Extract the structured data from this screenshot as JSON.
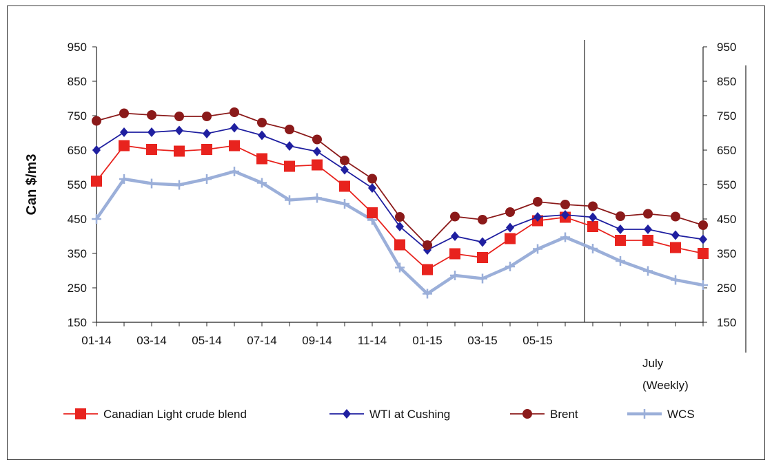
{
  "chart_data": {
    "type": "line",
    "ylabel": "Can $/m3",
    "ylim": [
      150,
      950
    ],
    "yticks": [
      150,
      250,
      350,
      450,
      550,
      650,
      750,
      850,
      950
    ],
    "x_tick_labels": [
      "01-14",
      "03-14",
      "05-14",
      "07-14",
      "09-14",
      "11-14",
      "01-15",
      "03-15",
      "05-15"
    ],
    "weekly_label": [
      "July",
      "(Weekly)"
    ],
    "grid": false,
    "legend_position": "bottom",
    "series": [
      {
        "name": "Canadian Light crude blend",
        "color": "#e8231e",
        "marker": "square",
        "values": [
          560,
          663,
          652,
          647,
          652,
          663,
          625,
          603,
          607,
          545,
          468,
          375,
          303,
          349,
          338,
          393,
          445,
          455,
          428,
          388,
          388,
          367,
          350
        ]
      },
      {
        "name": "WTI at Cushing",
        "color": "#1f1fa0",
        "marker": "diamond",
        "values": [
          650,
          702,
          702,
          707,
          698,
          715,
          693,
          662,
          646,
          593,
          540,
          428,
          360,
          400,
          383,
          425,
          456,
          462,
          455,
          420,
          420,
          403,
          391
        ]
      },
      {
        "name": "Brent",
        "color": "#8b1a1a",
        "marker": "circle",
        "values": [
          735,
          757,
          752,
          748,
          748,
          760,
          730,
          710,
          681,
          620,
          567,
          456,
          374,
          457,
          448,
          470,
          500,
          492,
          487,
          458,
          465,
          457,
          432
        ]
      },
      {
        "name": "WCS",
        "color": "#9bafd9",
        "marker": "plus",
        "values": [
          450,
          566,
          553,
          549,
          566,
          588,
          555,
          505,
          511,
          494,
          447,
          309,
          233,
          286,
          277,
          312,
          363,
          397,
          364,
          328,
          299,
          273,
          258
        ]
      }
    ]
  }
}
